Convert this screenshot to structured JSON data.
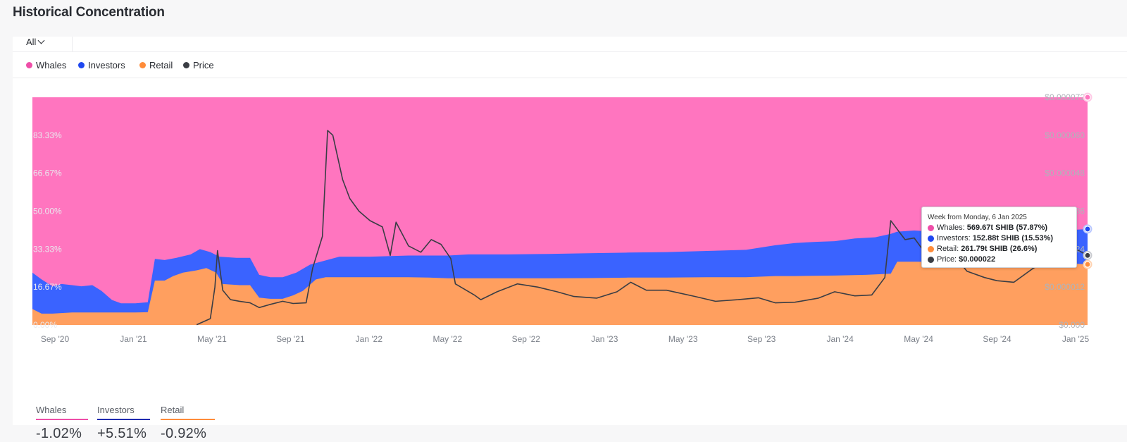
{
  "page": {
    "title": "Historical Concentration"
  },
  "filter": {
    "selected": "All"
  },
  "legend": [
    {
      "label": "Whales",
      "color": "#ee4ea8"
    },
    {
      "label": "Investors",
      "color": "#1f48f0"
    },
    {
      "label": "Retail",
      "color": "#ff8c3a"
    },
    {
      "label": "Price",
      "color": "#3a3d44"
    }
  ],
  "chart_data": {
    "type": "area",
    "stacked": true,
    "x_labels": [
      "Sep '20",
      "Jan '21",
      "May '21",
      "Sep '21",
      "Jan '22",
      "May '22",
      "Sep '22",
      "Jan '23",
      "May '23",
      "Sep '23",
      "Jan '24",
      "May '24",
      "Sep '24",
      "Jan '25"
    ],
    "x_range": [
      "2020-08-01",
      "2025-01-06"
    ],
    "ylim_left": [
      0,
      100
    ],
    "y_left_ticks": [
      "0.00%",
      "16.67%",
      "33.33%",
      "50.00%",
      "66.67%",
      "83.33%"
    ],
    "ylim_right": [
      0,
      7.2e-05
    ],
    "y_right_ticks": [
      "$0.000",
      "$0.000012",
      "$0.000024",
      "$0.000036",
      "$0.000048",
      "$0.000060",
      "$0.000072"
    ],
    "grid": false,
    "legend_position": "top-left",
    "series": [
      {
        "name": "Retail",
        "color": "#ff9f5f",
        "points": [
          [
            "2020-08-01",
            7
          ],
          [
            "2020-08-15",
            5
          ],
          [
            "2020-09-01",
            5
          ],
          [
            "2020-10-01",
            5.5
          ],
          [
            "2020-11-01",
            5.5
          ],
          [
            "2020-12-01",
            5.5
          ],
          [
            "2021-01-06",
            5.5
          ],
          [
            "2021-01-25",
            5.6
          ],
          [
            "2021-02-05",
            19.5
          ],
          [
            "2021-02-20",
            19.5
          ],
          [
            "2021-03-05",
            21.5
          ],
          [
            "2021-03-20",
            23
          ],
          [
            "2021-04-10",
            24
          ],
          [
            "2021-04-25",
            25
          ],
          [
            "2021-05-10",
            23
          ],
          [
            "2021-05-20",
            18
          ],
          [
            "2021-06-15",
            17.5
          ],
          [
            "2021-07-01",
            17.5
          ],
          [
            "2021-07-15",
            12
          ],
          [
            "2021-08-01",
            11.5
          ],
          [
            "2021-08-20",
            11.5
          ],
          [
            "2021-09-05",
            13
          ],
          [
            "2021-09-20",
            15
          ],
          [
            "2021-10-10",
            20
          ],
          [
            "2021-10-25",
            21
          ],
          [
            "2021-12-01",
            21
          ],
          [
            "2022-01-01",
            21
          ],
          [
            "2022-02-01",
            21
          ],
          [
            "2022-03-01",
            21
          ],
          [
            "2022-04-01",
            20.8
          ],
          [
            "2022-05-01",
            20.5
          ],
          [
            "2022-06-01",
            20.5
          ],
          [
            "2022-08-01",
            20.5
          ],
          [
            "2022-10-01",
            20.5
          ],
          [
            "2022-12-01",
            20.6
          ],
          [
            "2023-02-01",
            20.8
          ],
          [
            "2023-04-01",
            20.8
          ],
          [
            "2023-06-01",
            21
          ],
          [
            "2023-08-01",
            21
          ],
          [
            "2023-09-15",
            21.5
          ],
          [
            "2023-10-15",
            21.5
          ],
          [
            "2023-12-15",
            21.7
          ],
          [
            "2024-02-01",
            22
          ],
          [
            "2024-03-10",
            22.5
          ],
          [
            "2024-03-20",
            27.8
          ],
          [
            "2024-04-15",
            27.8
          ],
          [
            "2024-06-01",
            27.7
          ],
          [
            "2024-08-01",
            27.6
          ],
          [
            "2024-10-01",
            27.5
          ],
          [
            "2024-12-01",
            27.2
          ],
          [
            "2025-01-06",
            26.6
          ]
        ]
      },
      {
        "name": "Investors",
        "color": "#3a63ff",
        "points": [
          [
            "2020-08-01",
            23
          ],
          [
            "2020-08-15",
            20
          ],
          [
            "2020-09-01",
            17
          ],
          [
            "2020-09-15",
            18
          ],
          [
            "2020-10-01",
            17.5
          ],
          [
            "2020-10-15",
            17
          ],
          [
            "2020-11-01",
            17.5
          ],
          [
            "2020-11-15",
            15
          ],
          [
            "2020-12-01",
            11
          ],
          [
            "2020-12-15",
            9.5
          ],
          [
            "2021-01-06",
            9.5
          ],
          [
            "2021-01-25",
            10
          ],
          [
            "2021-02-05",
            29
          ],
          [
            "2021-02-20",
            28.5
          ],
          [
            "2021-03-10",
            29.5
          ],
          [
            "2021-04-01",
            31
          ],
          [
            "2021-04-15",
            33.3
          ],
          [
            "2021-05-01",
            32
          ],
          [
            "2021-05-15",
            30
          ],
          [
            "2021-06-10",
            29.5
          ],
          [
            "2021-07-01",
            29.5
          ],
          [
            "2021-07-15",
            22
          ],
          [
            "2021-08-01",
            21
          ],
          [
            "2021-08-20",
            21
          ],
          [
            "2021-09-10",
            23
          ],
          [
            "2021-10-01",
            26.5
          ],
          [
            "2021-10-20",
            28
          ],
          [
            "2021-11-15",
            30
          ],
          [
            "2022-01-01",
            30
          ],
          [
            "2022-03-01",
            30.5
          ],
          [
            "2022-05-01",
            30.5
          ],
          [
            "2022-06-01",
            31
          ],
          [
            "2022-08-01",
            31
          ],
          [
            "2022-10-01",
            31.2
          ],
          [
            "2022-12-01",
            31.5
          ],
          [
            "2023-02-01",
            31.8
          ],
          [
            "2023-04-01",
            32
          ],
          [
            "2023-06-01",
            32.5
          ],
          [
            "2023-08-01",
            33
          ],
          [
            "2023-09-15",
            35
          ],
          [
            "2023-10-15",
            36
          ],
          [
            "2023-11-15",
            36.5
          ],
          [
            "2023-12-15",
            36.8
          ],
          [
            "2024-01-15",
            38
          ],
          [
            "2024-02-15",
            38.5
          ],
          [
            "2024-03-10",
            40
          ],
          [
            "2024-03-20",
            41
          ],
          [
            "2024-04-15",
            41.5
          ],
          [
            "2024-05-15",
            41
          ],
          [
            "2024-06-15",
            41
          ],
          [
            "2024-07-15",
            40.8
          ],
          [
            "2024-09-01",
            41
          ],
          [
            "2024-10-01",
            40.5
          ],
          [
            "2024-11-01",
            41
          ],
          [
            "2024-12-01",
            41.5
          ],
          [
            "2025-01-06",
            42.13
          ]
        ]
      },
      {
        "name": "Whales",
        "color": "#ff75bf",
        "points": [
          [
            "2020-08-01",
            100
          ],
          [
            "2025-01-06",
            100
          ]
        ]
      },
      {
        "name": "Price",
        "color": "#3a3d44",
        "points": [
          [
            "2020-08-01",
            null
          ],
          [
            "2021-04-10",
            1e-07
          ],
          [
            "2021-05-01",
            2e-06
          ],
          [
            "2021-05-08",
            1.2e-05
          ],
          [
            "2021-05-12",
            2.35e-05
          ],
          [
            "2021-05-20",
            1.1e-05
          ],
          [
            "2021-06-01",
            8e-06
          ],
          [
            "2021-06-15",
            7.5e-06
          ],
          [
            "2021-07-01",
            7e-06
          ],
          [
            "2021-07-15",
            5.5e-06
          ],
          [
            "2021-08-01",
            6.5e-06
          ],
          [
            "2021-08-20",
            7.5e-06
          ],
          [
            "2021-09-05",
            6.8e-06
          ],
          [
            "2021-09-25",
            7e-06
          ],
          [
            "2021-10-05",
            1.8e-05
          ],
          [
            "2021-10-20",
            2.8e-05
          ],
          [
            "2021-10-28",
            6.15e-05
          ],
          [
            "2021-11-05",
            6e-05
          ],
          [
            "2021-11-20",
            4.6e-05
          ],
          [
            "2021-12-01",
            4e-05
          ],
          [
            "2021-12-15",
            3.6e-05
          ],
          [
            "2022-01-01",
            3.3e-05
          ],
          [
            "2022-01-20",
            3.1e-05
          ],
          [
            "2022-02-01",
            2.2e-05
          ],
          [
            "2022-02-10",
            3.25e-05
          ],
          [
            "2022-03-01",
            2.5e-05
          ],
          [
            "2022-03-20",
            2.3e-05
          ],
          [
            "2022-04-05",
            2.7e-05
          ],
          [
            "2022-04-20",
            2.55e-05
          ],
          [
            "2022-05-05",
            2.1e-05
          ],
          [
            "2022-05-12",
            1.3e-05
          ],
          [
            "2022-06-10",
            9.5e-06
          ],
          [
            "2022-06-20",
            8e-06
          ],
          [
            "2022-07-15",
            1.05e-05
          ],
          [
            "2022-08-15",
            1.3e-05
          ],
          [
            "2022-09-15",
            1.2e-05
          ],
          [
            "2022-10-15",
            1.05e-05
          ],
          [
            "2022-11-10",
            9e-06
          ],
          [
            "2022-12-15",
            8.5e-06
          ],
          [
            "2023-01-15",
            1.05e-05
          ],
          [
            "2023-02-05",
            1.35e-05
          ],
          [
            "2023-03-01",
            1.1e-05
          ],
          [
            "2023-04-01",
            1.1e-05
          ],
          [
            "2023-05-15",
            9e-06
          ],
          [
            "2023-06-15",
            7.5e-06
          ],
          [
            "2023-07-20",
            8e-06
          ],
          [
            "2023-08-20",
            8.6e-06
          ],
          [
            "2023-09-15",
            7e-06
          ],
          [
            "2023-10-15",
            7.2e-06
          ],
          [
            "2023-11-20",
            8.5e-06
          ],
          [
            "2023-12-15",
            1.05e-05
          ],
          [
            "2024-01-15",
            9.2e-06
          ],
          [
            "2024-02-10",
            9.5e-06
          ],
          [
            "2024-03-01",
            1.5e-05
          ],
          [
            "2024-03-10",
            3.3e-05
          ],
          [
            "2024-04-01",
            2.7e-05
          ],
          [
            "2024-04-15",
            2.75e-05
          ],
          [
            "2024-05-01",
            2.3e-05
          ],
          [
            "2024-05-20",
            2.5e-05
          ],
          [
            "2024-06-15",
            2.2e-05
          ],
          [
            "2024-07-05",
            1.7e-05
          ],
          [
            "2024-08-01",
            1.5e-05
          ],
          [
            "2024-08-20",
            1.4e-05
          ],
          [
            "2024-09-15",
            1.35e-05
          ],
          [
            "2024-10-15",
            1.8e-05
          ],
          [
            "2024-11-15",
            2.1e-05
          ],
          [
            "2024-12-10",
            2.5e-05
          ],
          [
            "2025-01-06",
            2.2e-05
          ]
        ]
      }
    ],
    "tooltip": {
      "title": "Week from Monday, 6 Jan 2025",
      "rows": [
        {
          "label": "Whales:",
          "value": "569.67t SHIB (57.87%)",
          "color": "#ee4ea8"
        },
        {
          "label": "Investors:",
          "value": "152.88t SHIB (15.53%)",
          "color": "#1f48f0"
        },
        {
          "label": "Retail:",
          "value": "261.79t SHIB (26.6%)",
          "color": "#ff8c3a"
        },
        {
          "label": "Price:",
          "value": "$0.000022",
          "color": "#3a3d44"
        }
      ]
    }
  },
  "stats": [
    {
      "label": "Whales",
      "value": "-1.02%",
      "color": "#ee4ea8"
    },
    {
      "label": "Investors",
      "value": "+5.51%",
      "color": "#1f2bb0"
    },
    {
      "label": "Retail",
      "value": "-0.92%",
      "color": "#ff8c3a"
    }
  ]
}
